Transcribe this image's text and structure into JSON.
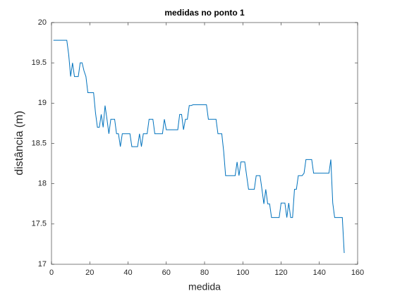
{
  "chart_data": {
    "type": "line",
    "title": "medidas no ponto 1",
    "x_label": "medida",
    "y_label": "distância (m)",
    "x": [
      1,
      2,
      3,
      4,
      5,
      6,
      7,
      8,
      9,
      10,
      11,
      12,
      13,
      14,
      15,
      16,
      17,
      18,
      19,
      20,
      21,
      22,
      23,
      24,
      25,
      26,
      27,
      28,
      29,
      30,
      31,
      32,
      33,
      34,
      35,
      36,
      37,
      38,
      39,
      40,
      41,
      42,
      43,
      44,
      45,
      46,
      47,
      48,
      49,
      50,
      51,
      52,
      53,
      54,
      55,
      56,
      57,
      58,
      59,
      60,
      61,
      62,
      63,
      64,
      65,
      66,
      67,
      68,
      69,
      70,
      71,
      72,
      73,
      74,
      75,
      76,
      77,
      78,
      79,
      80,
      81,
      82,
      83,
      84,
      85,
      86,
      87,
      88,
      89,
      90,
      91,
      92,
      93,
      94,
      95,
      96,
      97,
      98,
      99,
      100,
      101,
      102,
      103,
      104,
      105,
      106,
      107,
      108,
      109,
      110,
      111,
      112,
      113,
      114,
      115,
      116,
      117,
      118,
      119,
      120,
      121,
      122,
      123,
      124,
      125,
      126,
      127,
      128,
      129,
      130,
      131,
      132,
      133,
      134,
      135,
      136,
      137,
      138,
      139,
      140,
      141,
      142,
      143,
      144,
      145,
      146,
      147,
      148,
      149,
      150,
      151,
      152,
      153
    ],
    "series": [
      {
        "name": "ponto 1",
        "color": "#0072bd",
        "values": [
          19.78,
          19.78,
          19.78,
          19.78,
          19.78,
          19.78,
          19.78,
          19.78,
          19.6,
          19.33,
          19.5,
          19.33,
          19.33,
          19.33,
          19.5,
          19.5,
          19.4,
          19.33,
          19.13,
          19.13,
          19.13,
          19.13,
          18.88,
          18.7,
          18.7,
          18.86,
          18.7,
          18.97,
          18.8,
          18.62,
          18.8,
          18.8,
          18.8,
          18.62,
          18.62,
          18.46,
          18.62,
          18.62,
          18.62,
          18.62,
          18.62,
          18.46,
          18.46,
          18.46,
          18.46,
          18.62,
          18.46,
          18.62,
          18.62,
          18.62,
          18.8,
          18.8,
          18.8,
          18.62,
          18.62,
          18.62,
          18.62,
          18.62,
          18.8,
          18.67,
          18.67,
          18.67,
          18.67,
          18.67,
          18.67,
          18.67,
          18.86,
          18.86,
          18.67,
          18.8,
          18.8,
          18.97,
          18.97,
          18.98,
          18.98,
          18.98,
          18.98,
          18.98,
          18.98,
          18.98,
          18.98,
          18.8,
          18.8,
          18.8,
          18.8,
          18.8,
          18.62,
          18.62,
          18.62,
          18.4,
          18.1,
          18.1,
          18.1,
          18.1,
          18.1,
          18.1,
          18.27,
          18.1,
          18.27,
          18.27,
          18.27,
          18.1,
          17.93,
          17.93,
          17.93,
          17.93,
          18.1,
          18.1,
          18.1,
          17.93,
          17.75,
          17.93,
          17.75,
          17.75,
          17.58,
          17.58,
          17.58,
          17.58,
          17.58,
          17.76,
          17.76,
          17.76,
          17.58,
          17.76,
          17.58,
          17.58,
          17.93,
          17.93,
          18.1,
          18.1,
          18.1,
          18.13,
          18.3,
          18.3,
          18.3,
          18.3,
          18.13,
          18.13,
          18.13,
          18.13,
          18.13,
          18.13,
          18.13,
          18.13,
          18.13,
          18.3,
          17.76,
          17.58,
          17.58,
          17.58,
          17.58,
          17.58,
          17.14
        ]
      }
    ],
    "xlim": [
      0,
      160
    ],
    "xticks": [
      0,
      20,
      40,
      60,
      80,
      100,
      120,
      140,
      160
    ],
    "ylim": [
      17,
      20
    ],
    "yticks": [
      17,
      17.5,
      18,
      18.5,
      19,
      19.5,
      20
    ],
    "grid": false
  }
}
